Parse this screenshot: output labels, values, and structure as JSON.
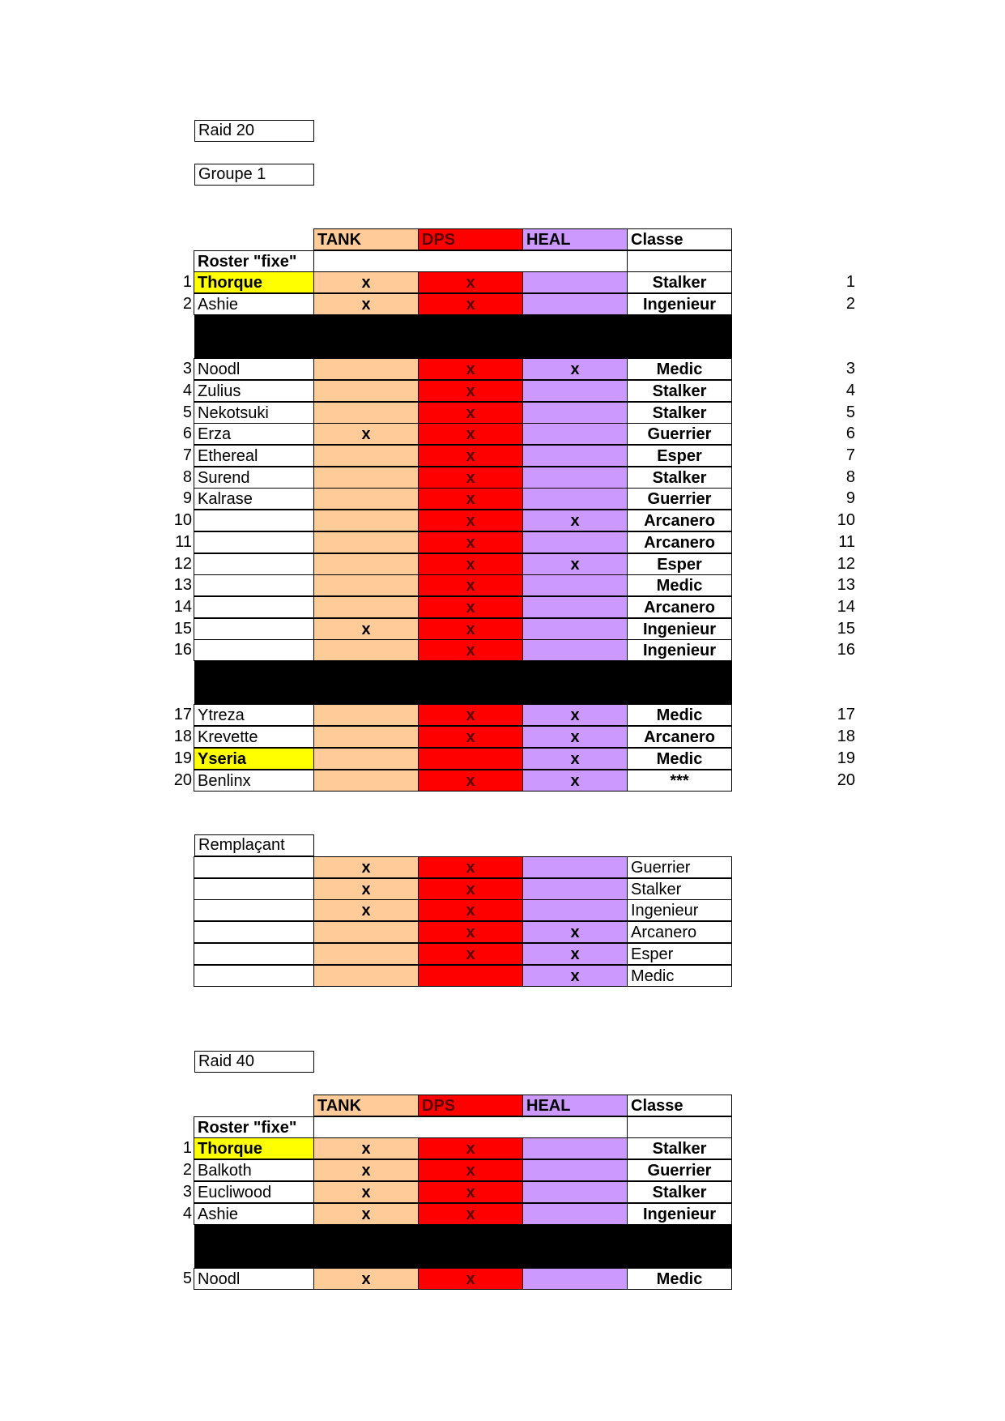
{
  "colors": {
    "tank": "#ffcc99",
    "dps": "#ff0000",
    "heal": "#cc99ff",
    "highlight": "#ffff00",
    "separator": "#000000"
  },
  "raid20": {
    "title": "Raid 20",
    "group": "Groupe 1",
    "headers": {
      "tank": "TANK",
      "dps": "DPS",
      "heal": "HEAL",
      "classe": "Classe"
    },
    "roster_label": "Roster \"fixe\"",
    "rows": [
      {
        "num": "1",
        "name": "Thorque",
        "highlight": true,
        "tank": "x",
        "dps": "x",
        "heal": "",
        "classe": "Stalker",
        "right": "1"
      },
      {
        "num": "2",
        "name": "Ashie",
        "tank": "x",
        "dps": "x",
        "heal": "",
        "classe": "Ingenieur",
        "right": "2"
      },
      {
        "separator": true
      },
      {
        "num": "3",
        "name": "Noodl",
        "tank": "",
        "dps": "x",
        "heal": "x",
        "classe": "Medic",
        "right": "3"
      },
      {
        "num": "4",
        "name": "Zulius",
        "tank": "",
        "dps": "x",
        "heal": "",
        "classe": "Stalker",
        "right": "4"
      },
      {
        "num": "5",
        "name": "Nekotsuki",
        "tank": "",
        "dps": "x",
        "heal": "",
        "classe": "Stalker",
        "right": "5"
      },
      {
        "num": "6",
        "name": "Erza",
        "tank": "x",
        "dps": "x",
        "heal": "",
        "classe": "Guerrier",
        "right": "6"
      },
      {
        "num": "7",
        "name": "Ethereal",
        "tank": "",
        "dps": "x",
        "heal": "",
        "classe": "Esper",
        "right": "7"
      },
      {
        "num": "8",
        "name": "Surend",
        "tank": "",
        "dps": "x",
        "heal": "",
        "classe": "Stalker",
        "right": "8"
      },
      {
        "num": "9",
        "name": "Kalrase",
        "tank": "",
        "dps": "x",
        "heal": "",
        "classe": "Guerrier",
        "right": "9"
      },
      {
        "num": "10",
        "name": "",
        "tank": "",
        "dps": "x",
        "heal": "x",
        "classe": "Arcanero",
        "right": "10"
      },
      {
        "num": "11",
        "name": "",
        "tank": "",
        "dps": "x",
        "heal": "",
        "classe": "Arcanero",
        "right": "11"
      },
      {
        "num": "12",
        "name": "",
        "tank": "",
        "dps": "x",
        "heal": "x",
        "classe": "Esper",
        "right": "12"
      },
      {
        "num": "13",
        "name": "",
        "tank": "",
        "dps": "x",
        "heal": "",
        "classe": "Medic",
        "right": "13"
      },
      {
        "num": "14",
        "name": "",
        "tank": "",
        "dps": "x",
        "heal": "",
        "classe": "Arcanero",
        "right": "14"
      },
      {
        "num": "15",
        "name": "",
        "tank": "x",
        "dps": "x",
        "heal": "",
        "classe": "Ingenieur",
        "right": "15"
      },
      {
        "num": "16",
        "name": "",
        "tank": "",
        "dps": "x",
        "heal": "",
        "classe": "Ingenieur",
        "right": "16"
      },
      {
        "separator": true
      },
      {
        "num": "17",
        "name": "Ytreza",
        "tank": "",
        "dps": "x",
        "heal": "x",
        "classe": "Medic",
        "right": "17"
      },
      {
        "num": "18",
        "name": "Krevette",
        "tank": "",
        "dps": "x",
        "heal": "x",
        "classe": "Arcanero",
        "right": "18"
      },
      {
        "num": "19",
        "name": "Yseria",
        "highlight": true,
        "tank": "",
        "dps": "",
        "heal": "x",
        "classe": "Medic",
        "right": "19"
      },
      {
        "num": "20",
        "name": "Benlinx",
        "tank": "",
        "dps": "x",
        "heal": "x",
        "classe": "***",
        "right": "20"
      }
    ]
  },
  "remplacant": {
    "label": "Remplaçant",
    "rows": [
      {
        "tank": "x",
        "dps": "x",
        "heal": "",
        "classe": "Guerrier"
      },
      {
        "tank": "x",
        "dps": "x",
        "heal": "",
        "classe": "Stalker"
      },
      {
        "tank": "x",
        "dps": "x",
        "heal": "",
        "classe": "Ingenieur"
      },
      {
        "tank": "",
        "dps": "x",
        "heal": "x",
        "classe": "Arcanero"
      },
      {
        "tank": "",
        "dps": "x",
        "heal": "x",
        "classe": "Esper"
      },
      {
        "tank": "",
        "dps": "",
        "heal": "x",
        "classe": "Medic"
      }
    ]
  },
  "raid40": {
    "title": "Raid 40",
    "headers": {
      "tank": "TANK",
      "dps": "DPS",
      "heal": "HEAL",
      "classe": "Classe"
    },
    "roster_label": "Roster \"fixe\"",
    "rows": [
      {
        "num": "1",
        "name": "Thorque",
        "highlight": true,
        "tank": "x",
        "dps": "x",
        "heal": "",
        "classe": "Stalker"
      },
      {
        "num": "2",
        "name": "Balkoth",
        "tank": "x",
        "dps": "x",
        "heal": "",
        "classe": "Guerrier"
      },
      {
        "num": "3",
        "name": "Eucliwood",
        "tank": "x",
        "dps": "x",
        "heal": "",
        "classe": "Stalker"
      },
      {
        "num": "4",
        "name": "Ashie",
        "tank": "x",
        "dps": "x",
        "heal": "",
        "classe": "Ingenieur"
      },
      {
        "separator": true
      },
      {
        "num": "5",
        "name": "Noodl",
        "tank": "x",
        "dps": "x",
        "heal": "",
        "classe": "Medic"
      }
    ]
  }
}
